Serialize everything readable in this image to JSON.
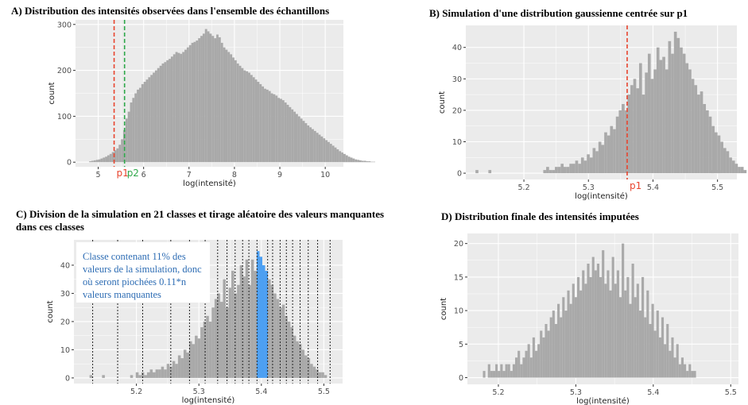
{
  "titles": {
    "a": "A) Distribution des intensités observées dans l'ensemble des échantillons",
    "b": "B) Simulation d'une distribution gaussienne centrée sur p1",
    "c": "C) Division de la simulation en 21 classes et tirage aléatoire des valeurs manquantes dans ces classes",
    "d": "D) Distribution finale des intensités imputées"
  },
  "annotation_c": "Classe contenant 11% des valeurs de la simulation, donc où seront piochées 0.11*n valeurs manquantes",
  "colors": {
    "panel_bg": "#ebebeb",
    "grid": "#ffffff",
    "bar": "#a9a9a9",
    "highlight": "#4c9ff2",
    "p1": "#e8442e",
    "p2": "#2ea84a",
    "axis_text": "#4d4d4d"
  },
  "chart_data": [
    {
      "id": "a",
      "type": "bar",
      "title": "A) Distribution des intensités observées dans l'ensemble des échantillons",
      "xlabel": "log(intensité)",
      "ylabel": "count",
      "xlim": [
        4.5,
        10.4
      ],
      "ylim": [
        -10,
        310
      ],
      "xticks": [
        5,
        6,
        7,
        8,
        9,
        10
      ],
      "yticks": [
        0,
        100,
        200,
        300
      ],
      "grid": true,
      "bin_start": 4.8,
      "bin_width": 0.05,
      "values": [
        2,
        3,
        4,
        5,
        6,
        8,
        10,
        12,
        15,
        18,
        22,
        26,
        30,
        38,
        50,
        70,
        95,
        110,
        130,
        140,
        150,
        158,
        162,
        170,
        175,
        180,
        185,
        190,
        195,
        200,
        205,
        210,
        215,
        218,
        222,
        225,
        230,
        235,
        240,
        238,
        236,
        240,
        245,
        250,
        255,
        260,
        262,
        265,
        270,
        275,
        280,
        290,
        285,
        280,
        275,
        270,
        278,
        272,
        260,
        250,
        245,
        240,
        235,
        228,
        222,
        215,
        210,
        205,
        200,
        198,
        195,
        190,
        185,
        180,
        175,
        170,
        165,
        160,
        158,
        155,
        150,
        148,
        145,
        140,
        138,
        135,
        130,
        125,
        120,
        115,
        110,
        105,
        100,
        95,
        90,
        85,
        80,
        76,
        72,
        68,
        64,
        60,
        56,
        52,
        48,
        44,
        40,
        36,
        32,
        28,
        24,
        21,
        18,
        15,
        12,
        10,
        8,
        6,
        5,
        4,
        3,
        3,
        2,
        2,
        1,
        1
      ],
      "vlines": [
        {
          "label": "p1",
          "x": 5.35,
          "color": "#e8442e"
        },
        {
          "label": "p2",
          "x": 5.58,
          "color": "#2ea84a"
        }
      ]
    },
    {
      "id": "b",
      "type": "bar",
      "title": "B) Simulation d'une distribution gaussienne centrée sur p1",
      "xlabel": "log(intensité)",
      "ylabel": "count",
      "xlim": [
        5.11,
        5.53
      ],
      "ylim": [
        -2,
        47
      ],
      "xticks": [
        5.2,
        5.3,
        5.4,
        5.5
      ],
      "yticks": [
        0,
        10,
        20,
        30,
        40
      ],
      "grid": true,
      "bin_start": 5.23,
      "bin_width": 0.0045,
      "values": [
        1,
        2,
        1,
        1,
        2,
        2,
        3,
        2,
        2,
        3,
        3,
        4,
        3,
        5,
        4,
        6,
        5,
        8,
        7,
        10,
        9,
        13,
        12,
        15,
        14,
        18,
        20,
        22,
        20,
        25,
        28,
        30,
        27,
        35,
        25,
        32,
        38,
        30,
        33,
        40,
        36,
        37,
        33,
        42,
        38,
        45,
        43,
        40,
        38,
        35,
        33,
        30,
        28,
        25,
        26,
        22,
        20,
        18,
        15,
        13,
        12,
        10,
        8,
        7,
        5,
        4,
        3,
        2,
        2,
        1
      ],
      "extra_bars": [
        [
          5.125,
          1
        ],
        [
          5.145,
          1
        ],
        [
          5.49,
          1
        ],
        [
          5.5,
          1
        ]
      ],
      "vlines": [
        {
          "label": "p1",
          "x": 5.36,
          "color": "#e8442e"
        }
      ]
    },
    {
      "id": "c",
      "type": "bar",
      "title": "C) Division de la simulation en 21 classes et tirage aléatoire des valeurs manquantes dans ces classes",
      "xlabel": "log(intensité)",
      "ylabel": "count",
      "xlim": [
        5.1,
        5.53
      ],
      "ylim": [
        -2,
        49
      ],
      "xticks": [
        5.2,
        5.3,
        5.4,
        5.5
      ],
      "yticks": [
        0,
        10,
        20,
        30,
        40
      ],
      "grid": true,
      "bin_start": 5.19,
      "bin_width": 0.0045,
      "values": [
        1,
        0,
        2,
        1,
        2,
        1,
        2,
        3,
        2,
        3,
        3,
        4,
        3,
        5,
        4,
        6,
        5,
        8,
        7,
        10,
        9,
        13,
        12,
        15,
        14,
        18,
        20,
        22,
        20,
        25,
        28,
        30,
        27,
        35,
        25,
        32,
        38,
        30,
        33,
        40,
        36,
        42,
        33,
        42,
        38,
        45,
        43,
        40,
        38,
        35,
        33,
        30,
        28,
        25,
        26,
        22,
        20,
        18,
        15,
        13,
        12,
        10,
        8,
        7,
        5,
        4,
        3,
        2,
        2,
        1
      ],
      "extra_bars": [
        [
          5.125,
          1
        ],
        [
          5.145,
          1
        ],
        [
          5.49,
          1
        ]
      ],
      "highlight_range": [
        5.393,
        5.41
      ],
      "class_breaks": [
        5.13,
        5.17,
        5.21,
        5.255,
        5.285,
        5.31,
        5.33,
        5.345,
        5.358,
        5.37,
        5.38,
        5.393,
        5.41,
        5.418,
        5.43,
        5.44,
        5.45,
        5.462,
        5.475,
        5.49,
        5.51
      ]
    },
    {
      "id": "d",
      "type": "bar",
      "title": "D) Distribution finale des intensités imputées",
      "xlabel": "log(intensité)",
      "ylabel": "count",
      "xlim": [
        5.16,
        5.51
      ],
      "ylim": [
        -1,
        21.5
      ],
      "xticks": [
        5.2,
        5.3,
        5.4,
        5.5
      ],
      "yticks": [
        0,
        5,
        10,
        15,
        20
      ],
      "grid": true,
      "bin_start": 5.18,
      "bin_width": 0.0032,
      "values": [
        1,
        0,
        2,
        1,
        1,
        2,
        1,
        2,
        1,
        2,
        2,
        1,
        2,
        3,
        4,
        2,
        3,
        4,
        5,
        3,
        6,
        4,
        5,
        7,
        6,
        8,
        7,
        9,
        10,
        8,
        11,
        9,
        12,
        10,
        13,
        11,
        14,
        12,
        15,
        13,
        16,
        14,
        17,
        15,
        18,
        16,
        17,
        15,
        19,
        14,
        16,
        13,
        18,
        14,
        16,
        12,
        20,
        13,
        15,
        11,
        17,
        12,
        14,
        10,
        15,
        9,
        13,
        8,
        11,
        7,
        10,
        6,
        9,
        5,
        8,
        4,
        6,
        3,
        5,
        2,
        3,
        2,
        1,
        2,
        1,
        1
      ]
    }
  ]
}
